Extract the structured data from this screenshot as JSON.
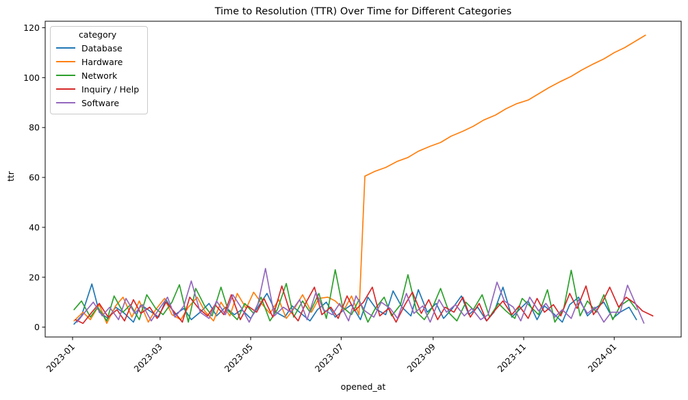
{
  "chart_data": {
    "type": "line",
    "title": "Time to Resolution (TTR) Over Time for Different Categories",
    "xlabel": "opened_at",
    "ylabel": "ttr",
    "legend_title": "category",
    "legend_position": "upper left",
    "grid": false,
    "background_color": "#ffffff",
    "x_unit": "days since 2023-01-01",
    "xlim_days": [
      -18.45,
      410.1
    ],
    "ylim": [
      -3.95,
      122.6
    ],
    "y_ticks": [
      0,
      20,
      40,
      60,
      80,
      100,
      120
    ],
    "x_ticks": [
      {
        "day": 0,
        "label": "2023-01"
      },
      {
        "day": 59,
        "label": "2023-03"
      },
      {
        "day": 120,
        "label": "2023-05"
      },
      {
        "day": 181,
        "label": "2023-07"
      },
      {
        "day": 243,
        "label": "2023-09"
      },
      {
        "day": 304,
        "label": "2023-11"
      },
      {
        "day": 365,
        "label": "2024-01"
      }
    ],
    "series": [
      {
        "name": "Database",
        "color": "#1f77b4",
        "days": [
          1,
          6,
          13,
          18,
          24,
          29,
          35,
          41,
          46,
          52,
          58,
          63,
          69,
          75,
          80,
          86,
          92,
          97,
          103,
          109,
          114,
          120,
          126,
          131,
          137,
          143,
          148,
          154,
          160,
          165,
          171,
          177,
          182,
          188,
          194,
          199,
          205,
          211,
          216,
          222,
          228,
          233,
          239,
          245,
          250,
          256,
          262,
          267,
          273,
          279,
          284,
          290,
          296,
          301,
          307,
          313,
          318,
          324,
          330,
          335,
          341,
          347,
          352,
          358,
          364,
          369,
          375,
          380
        ],
        "values": [
          1.2,
          4.5,
          17.3,
          6.0,
          3.5,
          8.0,
          5.5,
          2.0,
          9.0,
          6.5,
          4.0,
          11.0,
          5.0,
          7.5,
          3.0,
          6.0,
          9.5,
          4.5,
          8.0,
          5.0,
          7.0,
          3.5,
          9.0,
          13.5,
          6.0,
          4.0,
          8.5,
          5.5,
          2.5,
          7.0,
          10.0,
          4.0,
          6.5,
          9.0,
          3.0,
          12.0,
          7.0,
          5.0,
          14.5,
          8.0,
          4.5,
          15.0,
          6.0,
          9.5,
          3.5,
          7.5,
          12.5,
          5.0,
          8.0,
          2.5,
          6.0,
          16.0,
          4.0,
          7.0,
          10.5,
          3.0,
          8.5,
          5.5,
          2.0,
          9.0,
          12.0,
          4.5,
          7.5,
          10.0,
          3.5,
          6.0,
          8.0,
          3.0
        ]
      },
      {
        "name": "Hardware",
        "color": "#ff7f0e",
        "days": [
          1,
          7,
          12,
          18,
          23,
          29,
          34,
          40,
          45,
          51,
          56,
          62,
          67,
          73,
          78,
          84,
          89,
          95,
          100,
          106,
          111,
          117,
          122,
          128,
          133,
          139,
          144,
          150,
          155,
          161,
          166,
          172,
          177,
          183,
          188,
          193,
          197,
          204,
          211,
          219,
          226,
          233,
          241,
          248,
          255,
          263,
          270,
          277,
          285,
          292,
          299,
          307,
          314,
          321,
          329,
          336,
          343,
          351,
          358,
          365,
          372,
          379,
          386
        ],
        "values": [
          2.5,
          6.0,
          3.0,
          9.0,
          1.5,
          8.5,
          12.0,
          4.0,
          10.5,
          2.0,
          7.0,
          11.5,
          5.0,
          3.0,
          8.0,
          12.0,
          6.5,
          2.5,
          10.0,
          4.5,
          13.5,
          7.5,
          14.0,
          9.0,
          5.5,
          11.0,
          3.5,
          8.0,
          13.0,
          6.0,
          11.5,
          12.0,
          10.5,
          7.0,
          12.5,
          5.0,
          60.5,
          62.5,
          64.0,
          66.5,
          68.0,
          70.5,
          72.5,
          74.0,
          76.5,
          78.5,
          80.5,
          83.0,
          85.0,
          87.5,
          89.5,
          91.0,
          93.5,
          96.0,
          98.5,
          100.5,
          103.0,
          105.5,
          107.5,
          110.0,
          112.0,
          114.5,
          117.0
        ]
      },
      {
        "name": "Network",
        "color": "#2ca02c",
        "days": [
          1,
          6,
          12,
          17,
          23,
          28,
          34,
          39,
          45,
          50,
          56,
          61,
          67,
          72,
          78,
          83,
          89,
          94,
          100,
          105,
          111,
          116,
          122,
          127,
          133,
          138,
          144,
          149,
          155,
          160,
          166,
          171,
          177,
          182,
          188,
          193,
          199,
          204,
          210,
          215,
          221,
          226,
          232,
          237,
          243,
          248,
          254,
          259,
          265,
          270,
          276,
          281,
          287,
          292,
          298,
          303,
          309,
          314,
          320,
          325,
          331,
          336,
          342,
          347,
          353,
          358,
          364,
          369,
          375,
          380
        ],
        "values": [
          7.0,
          10.5,
          4.0,
          8.0,
          2.5,
          12.5,
          6.0,
          9.0,
          3.0,
          13.0,
          7.5,
          5.0,
          10.0,
          17.0,
          2.0,
          15.5,
          8.5,
          4.5,
          16.0,
          6.5,
          3.0,
          9.5,
          5.5,
          12.0,
          2.5,
          7.0,
          17.5,
          4.0,
          10.5,
          6.0,
          13.5,
          3.5,
          23.0,
          8.0,
          5.0,
          11.0,
          2.0,
          7.5,
          12.0,
          4.5,
          9.0,
          21.0,
          6.0,
          3.0,
          8.5,
          15.5,
          5.5,
          2.5,
          10.0,
          7.0,
          13.0,
          4.0,
          9.5,
          6.5,
          3.5,
          11.5,
          8.0,
          5.0,
          15.0,
          2.0,
          7.5,
          22.8,
          4.5,
          10.5,
          6.0,
          13.0,
          3.0,
          8.5,
          11.0,
          7.0
        ]
      },
      {
        "name": "Inquiry / Help",
        "color": "#d62728",
        "days": [
          2,
          7,
          13,
          18,
          24,
          30,
          35,
          41,
          46,
          52,
          57,
          63,
          68,
          74,
          79,
          85,
          91,
          96,
          102,
          107,
          113,
          118,
          124,
          129,
          135,
          141,
          146,
          152,
          157,
          163,
          168,
          174,
          179,
          185,
          190,
          196,
          202,
          207,
          213,
          218,
          224,
          229,
          235,
          240,
          246,
          251,
          257,
          263,
          268,
          274,
          279,
          285,
          290,
          296,
          301,
          307,
          313,
          318,
          324,
          329,
          335,
          340,
          346,
          351,
          357,
          362,
          368,
          373,
          379,
          384,
          391
        ],
        "values": [
          3.0,
          1.5,
          6.0,
          9.5,
          4.0,
          7.0,
          2.5,
          11.0,
          5.5,
          8.0,
          3.5,
          10.0,
          6.5,
          2.0,
          12.0,
          7.5,
          4.5,
          9.0,
          5.0,
          13.0,
          3.0,
          8.5,
          6.0,
          11.5,
          4.0,
          16.5,
          7.0,
          2.5,
          9.5,
          16.0,
          5.0,
          8.0,
          3.5,
          12.5,
          6.5,
          10.0,
          16.0,
          4.5,
          7.5,
          2.0,
          9.0,
          14.0,
          5.5,
          11.0,
          3.0,
          8.0,
          6.0,
          12.0,
          4.0,
          9.5,
          2.5,
          7.0,
          10.5,
          5.0,
          8.5,
          3.5,
          11.5,
          6.0,
          9.0,
          4.5,
          13.5,
          7.5,
          16.5,
          5.0,
          10.0,
          16.0,
          8.0,
          12.0,
          9.5,
          6.5,
          4.5
        ]
      },
      {
        "name": "Software",
        "color": "#9467bd",
        "days": [
          3,
          9,
          14,
          20,
          25,
          31,
          36,
          42,
          47,
          53,
          58,
          64,
          69,
          75,
          80,
          86,
          92,
          97,
          103,
          108,
          114,
          119,
          125,
          130,
          136,
          142,
          147,
          153,
          158,
          164,
          169,
          175,
          180,
          186,
          191,
          197,
          203,
          208,
          214,
          219,
          225,
          230,
          236,
          241,
          247,
          252,
          258,
          264,
          269,
          275,
          280,
          286,
          291,
          297,
          302,
          308,
          314,
          319,
          325,
          330,
          336,
          341,
          347,
          352,
          358,
          363,
          369,
          374,
          385
        ],
        "values": [
          2.0,
          6.5,
          10.0,
          4.5,
          8.0,
          3.0,
          11.5,
          5.5,
          9.0,
          2.5,
          7.0,
          12.0,
          4.0,
          8.5,
          18.5,
          6.0,
          3.5,
          10.5,
          5.0,
          13.0,
          7.5,
          2.0,
          9.5,
          23.5,
          4.5,
          8.0,
          6.0,
          11.0,
          3.0,
          14.0,
          7.0,
          5.0,
          9.5,
          2.5,
          12.5,
          6.5,
          4.0,
          10.0,
          7.5,
          3.5,
          13.5,
          5.5,
          8.5,
          2.0,
          11.0,
          6.0,
          9.0,
          4.5,
          7.5,
          3.0,
          5.0,
          18.0,
          10.5,
          8.0,
          2.5,
          12.0,
          6.5,
          9.5,
          4.0,
          7.0,
          3.5,
          11.0,
          5.5,
          8.0,
          2.0,
          6.0,
          6.0,
          16.8,
          1.6
        ]
      }
    ]
  }
}
